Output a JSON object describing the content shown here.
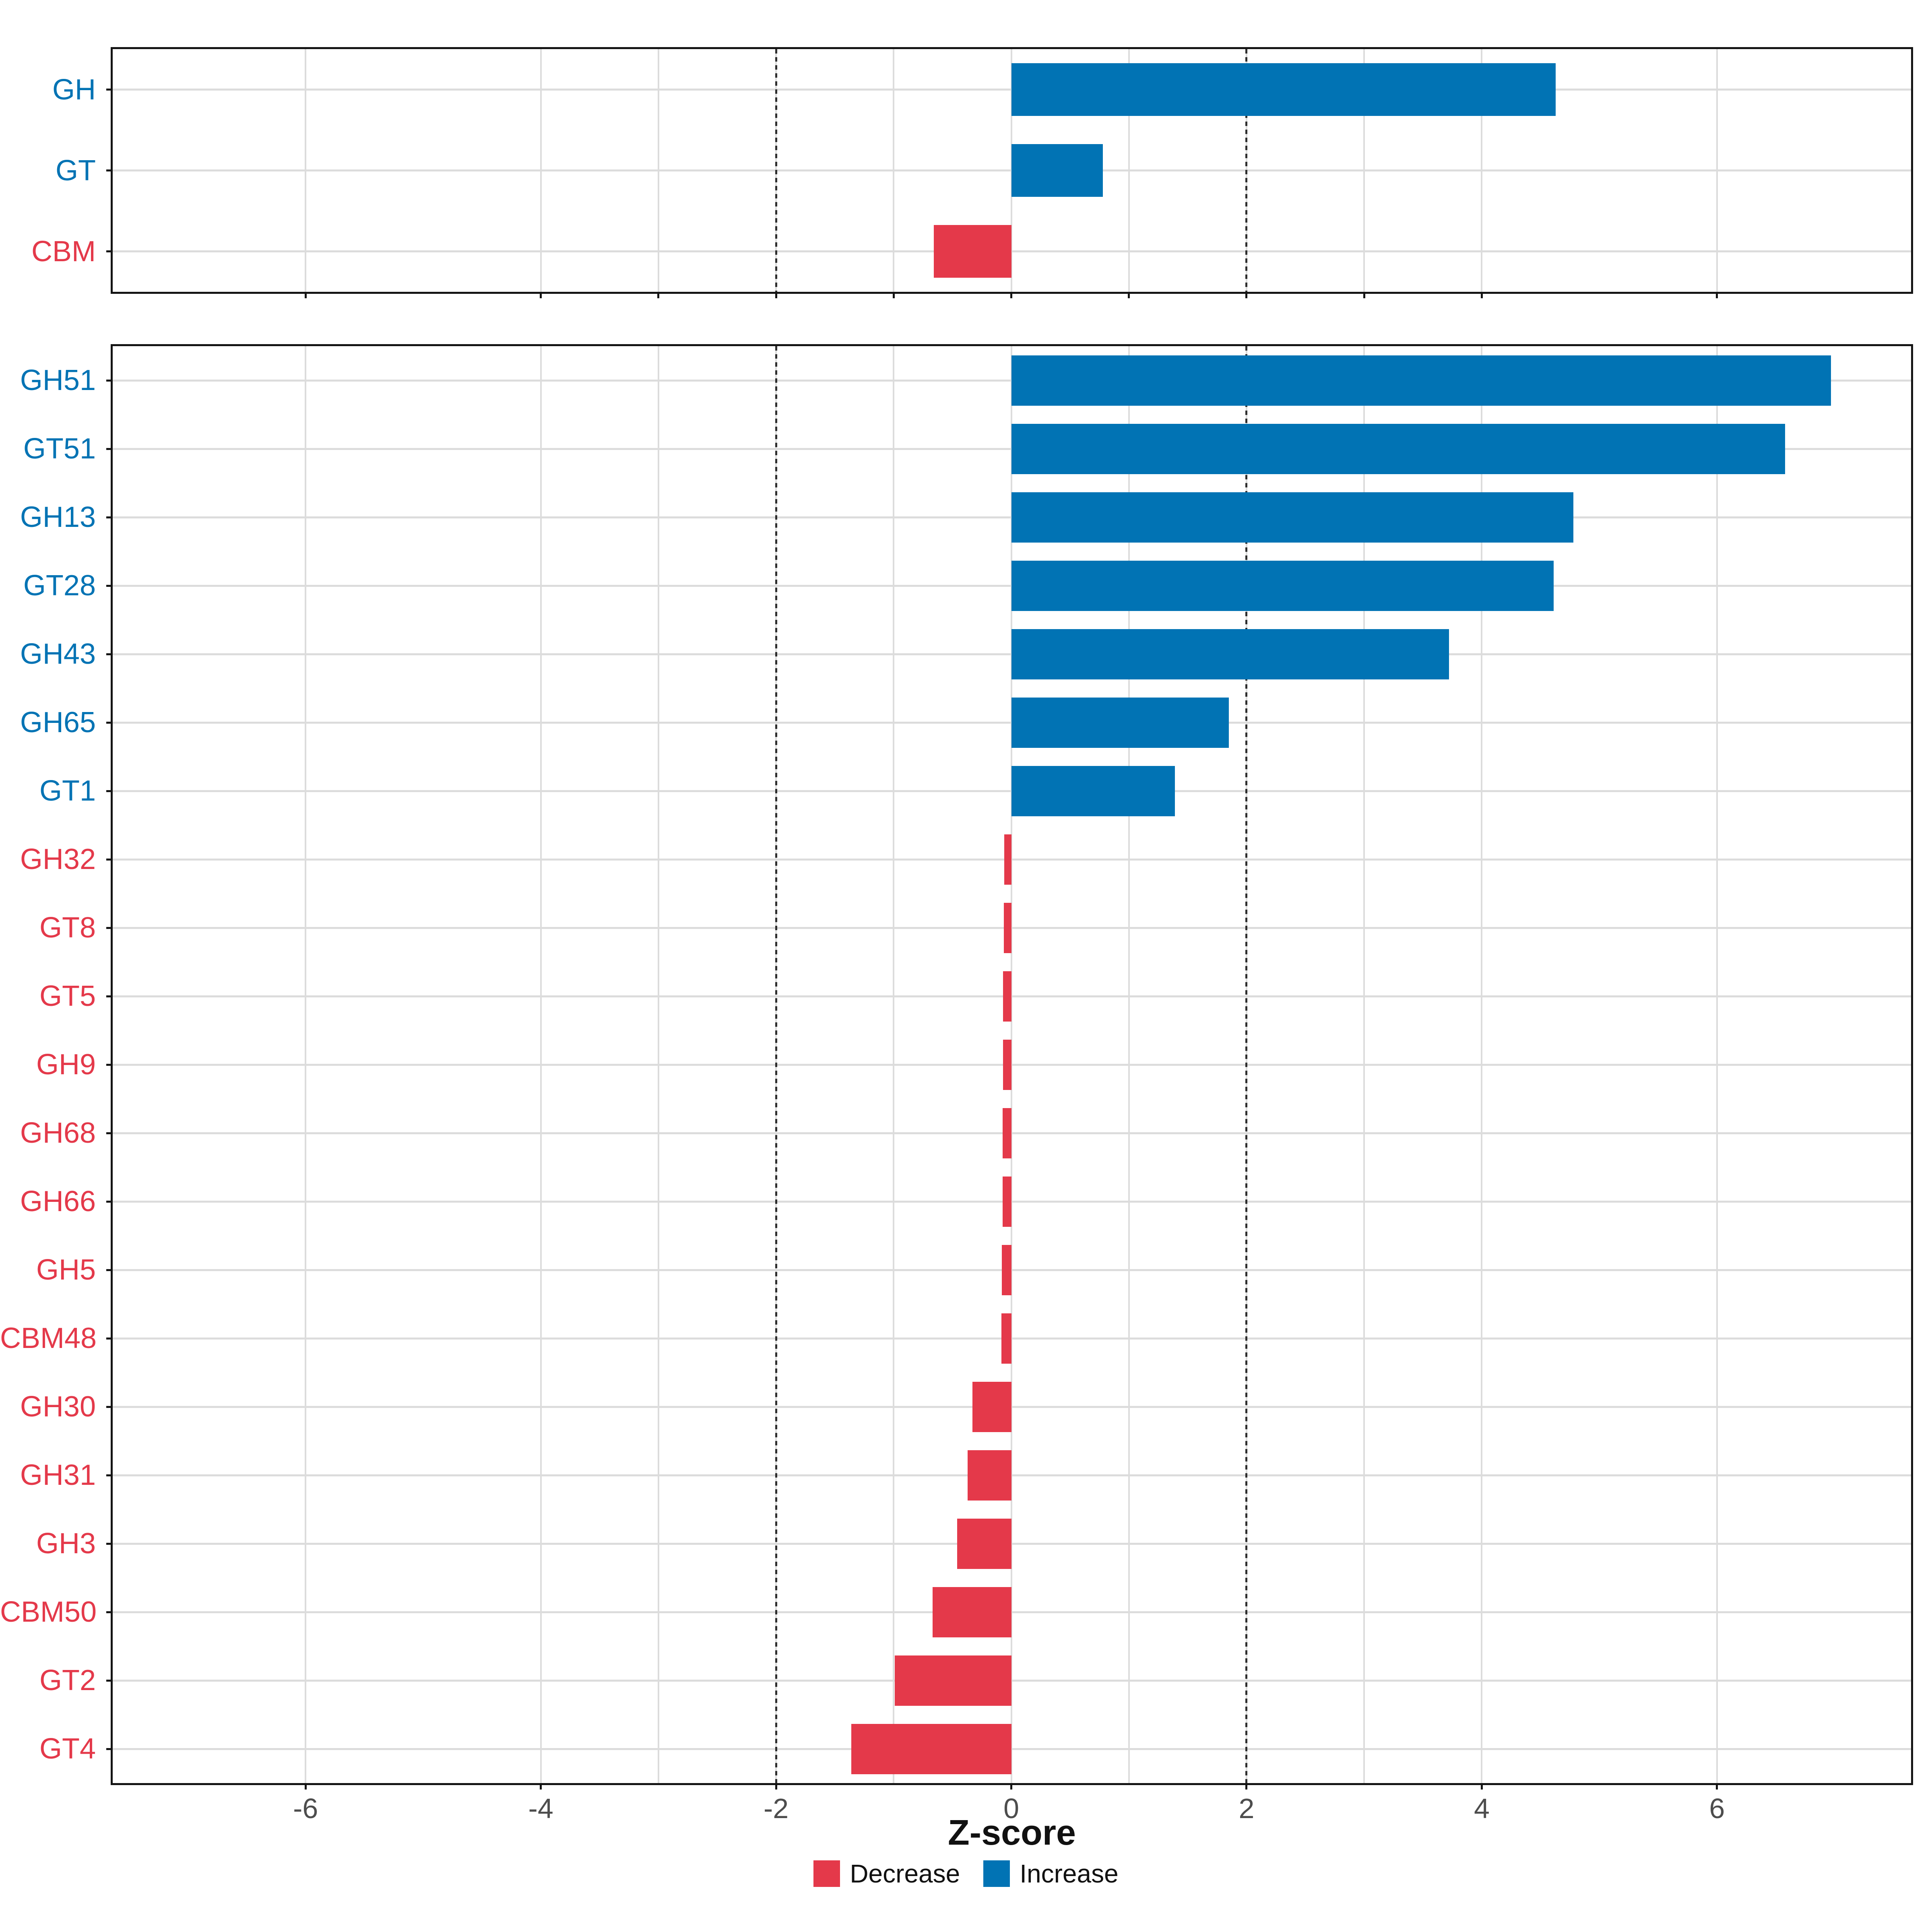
{
  "chart_data": {
    "type": "bar",
    "orientation": "horizontal",
    "title": "",
    "xlabel": "Z-score",
    "ylabel": "",
    "grid": true,
    "legend_position": "bottom",
    "colors": {
      "increase": "#0173B4",
      "decrease": "#E4394A"
    },
    "axis": {
      "domain": [
        -7.64,
        7.65
      ],
      "gridlines": [
        -6,
        -4,
        -3,
        -2,
        -1,
        0,
        1,
        2,
        3,
        4,
        6
      ],
      "top_panel_ticks": [
        -6,
        -4,
        -3,
        -2,
        -1,
        0,
        1,
        2,
        3,
        4,
        6
      ],
      "bottom_panel_ticks": [
        -6,
        -4,
        -2,
        0,
        2,
        4,
        6
      ],
      "tick_labels": [
        "-6",
        "-4",
        "-2",
        "0",
        "2",
        "4",
        "6"
      ],
      "vlines_dotted": [
        -2,
        2
      ]
    },
    "panels": [
      {
        "name": "summary",
        "categories": [
          "GH",
          "GT",
          "CBM"
        ],
        "values": [
          4.63,
          0.78,
          -0.66
        ]
      },
      {
        "name": "families",
        "categories": [
          "GH51",
          "GT51",
          "GH13",
          "GT28",
          "GH43",
          "GH65",
          "GT1",
          "GH32",
          "GT8",
          "GT5",
          "GH9",
          "GH68",
          "GH66",
          "GH5",
          "CBM48",
          "GH30",
          "GH31",
          "GH3",
          "CBM50",
          "GT2",
          "GT4"
        ],
        "values": [
          6.97,
          6.58,
          4.78,
          4.61,
          3.72,
          1.85,
          1.39,
          -0.06,
          -0.065,
          -0.07,
          -0.07,
          -0.075,
          -0.075,
          -0.08,
          -0.085,
          -0.33,
          -0.37,
          -0.46,
          -0.67,
          -0.99,
          -1.36
        ]
      }
    ]
  },
  "legend": {
    "items": [
      {
        "label": "Decrease",
        "color": "#E4394A"
      },
      {
        "label": "Increase",
        "color": "#0173B4"
      }
    ]
  }
}
